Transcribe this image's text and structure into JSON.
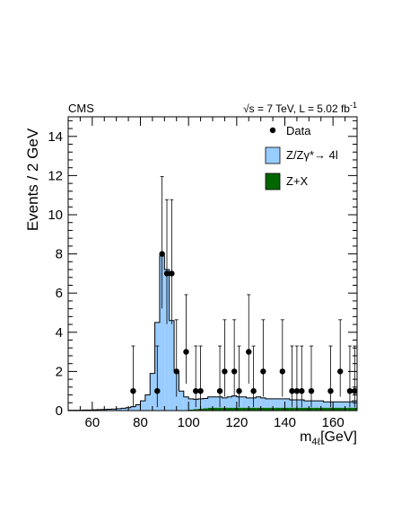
{
  "header": {
    "experiment": "CMS",
    "energy_lumi_prefix": "√s = 7 TeV, L = 5.02 fb",
    "lumi_exponent": "-1"
  },
  "chart_data": {
    "type": "bar",
    "title": "",
    "xlabel_main": "m",
    "xlabel_sub": "4ℓ",
    "xlabel_unit": "[GeV]",
    "ylabel": "Events / 2 GeV",
    "xlim": [
      50,
      170
    ],
    "ylim": [
      0,
      15
    ],
    "x_ticks": [
      60,
      80,
      100,
      120,
      140,
      160
    ],
    "y_ticks": [
      0,
      2,
      4,
      6,
      8,
      10,
      12,
      14
    ],
    "bin_width": 2,
    "legend_position": "top-right",
    "legend": [
      {
        "label": "Data",
        "kind": "marker"
      },
      {
        "label": "Z/Zγ*→ 4l",
        "kind": "fill",
        "color": "#99ccff"
      },
      {
        "label": "Z+X",
        "kind": "fill",
        "color": "#006600"
      }
    ],
    "series": [
      {
        "name": "Z/Zγ*→ 4l",
        "color": "#99ccff",
        "bin_lows": [
          50,
          52,
          54,
          56,
          58,
          60,
          62,
          64,
          66,
          68,
          70,
          72,
          74,
          76,
          78,
          80,
          82,
          84,
          86,
          88,
          90,
          92,
          94,
          96,
          98,
          100,
          102,
          104,
          106,
          108,
          110,
          112,
          114,
          116,
          118,
          120,
          122,
          124,
          126,
          128,
          130,
          132,
          134,
          136,
          138,
          140,
          142,
          144,
          146,
          148,
          150,
          152,
          154,
          156,
          158,
          160,
          162,
          164,
          166,
          168
        ],
        "values": [
          0.02,
          0.02,
          0.02,
          0.03,
          0.03,
          0.04,
          0.05,
          0.06,
          0.07,
          0.08,
          0.1,
          0.12,
          0.15,
          0.2,
          0.3,
          0.5,
          0.8,
          1.9,
          4.5,
          7.9,
          7.2,
          4.6,
          2.0,
          1.0,
          0.7,
          0.55,
          0.5,
          0.5,
          0.5,
          0.55,
          0.55,
          0.55,
          0.5,
          0.55,
          0.6,
          0.55,
          0.55,
          0.5,
          0.5,
          0.55,
          0.5,
          0.45,
          0.45,
          0.45,
          0.45,
          0.45,
          0.4,
          0.4,
          0.4,
          0.35,
          0.35,
          0.35,
          0.35,
          0.3,
          0.3,
          0.3,
          0.3,
          0.3,
          0.3,
          0.35
        ]
      },
      {
        "name": "Z+X",
        "color": "#006600",
        "bin_lows": [
          50,
          52,
          54,
          56,
          58,
          60,
          62,
          64,
          66,
          68,
          70,
          72,
          74,
          76,
          78,
          80,
          82,
          84,
          86,
          88,
          90,
          92,
          94,
          96,
          98,
          100,
          102,
          104,
          106,
          108,
          110,
          112,
          114,
          116,
          118,
          120,
          122,
          124,
          126,
          128,
          130,
          132,
          134,
          136,
          138,
          140,
          142,
          144,
          146,
          148,
          150,
          152,
          154,
          156,
          158,
          160,
          162,
          164,
          166,
          168
        ],
        "values": [
          0,
          0,
          0,
          0,
          0,
          0,
          0,
          0,
          0,
          0,
          0,
          0,
          0,
          0,
          0,
          0,
          0,
          0,
          0,
          0,
          0,
          0,
          0,
          0,
          0,
          0.05,
          0.08,
          0.1,
          0.12,
          0.15,
          0.15,
          0.15,
          0.15,
          0.15,
          0.15,
          0.15,
          0.15,
          0.15,
          0.15,
          0.15,
          0.15,
          0.15,
          0.15,
          0.15,
          0.15,
          0.15,
          0.15,
          0.15,
          0.15,
          0.15,
          0.15,
          0.15,
          0.15,
          0.15,
          0.15,
          0.15,
          0.15,
          0.15,
          0.15,
          0.15
        ]
      }
    ],
    "data_points": [
      {
        "x": 77,
        "y": 1,
        "err_low": 0.83,
        "err_high": 2.3
      },
      {
        "x": 87,
        "y": 1,
        "err_low": 0.83,
        "err_high": 2.3
      },
      {
        "x": 89,
        "y": 8,
        "err_low": 2.79,
        "err_high": 3.95
      },
      {
        "x": 91,
        "y": 7,
        "err_low": 2.58,
        "err_high": 3.77
      },
      {
        "x": 93,
        "y": 7,
        "err_low": 2.58,
        "err_high": 3.77
      },
      {
        "x": 95,
        "y": 2,
        "err_low": 1.29,
        "err_high": 2.64
      },
      {
        "x": 99,
        "y": 3,
        "err_low": 1.63,
        "err_high": 2.92
      },
      {
        "x": 103,
        "y": 1,
        "err_low": 0.83,
        "err_high": 2.3
      },
      {
        "x": 105,
        "y": 1,
        "err_low": 0.83,
        "err_high": 2.3
      },
      {
        "x": 113,
        "y": 1,
        "err_low": 0.83,
        "err_high": 2.3
      },
      {
        "x": 115,
        "y": 2,
        "err_low": 1.29,
        "err_high": 2.64
      },
      {
        "x": 119,
        "y": 2,
        "err_low": 1.29,
        "err_high": 2.64
      },
      {
        "x": 121,
        "y": 1,
        "err_low": 0.83,
        "err_high": 2.3
      },
      {
        "x": 125,
        "y": 3,
        "err_low": 1.63,
        "err_high": 2.92
      },
      {
        "x": 127,
        "y": 1,
        "err_low": 0.83,
        "err_high": 2.3
      },
      {
        "x": 131,
        "y": 2,
        "err_low": 1.29,
        "err_high": 2.64
      },
      {
        "x": 139,
        "y": 2,
        "err_low": 1.29,
        "err_high": 2.64
      },
      {
        "x": 143,
        "y": 1,
        "err_low": 0.83,
        "err_high": 2.3
      },
      {
        "x": 145,
        "y": 1,
        "err_low": 0.83,
        "err_high": 2.3
      },
      {
        "x": 147,
        "y": 1,
        "err_low": 0.83,
        "err_high": 2.3
      },
      {
        "x": 151,
        "y": 1,
        "err_low": 0.83,
        "err_high": 2.3
      },
      {
        "x": 159,
        "y": 1,
        "err_low": 0.83,
        "err_high": 2.3
      },
      {
        "x": 163,
        "y": 2,
        "err_low": 1.29,
        "err_high": 2.64
      },
      {
        "x": 167,
        "y": 1,
        "err_low": 0.83,
        "err_high": 2.3
      },
      {
        "x": 169,
        "y": 1,
        "err_low": 0.83,
        "err_high": 2.3
      }
    ]
  }
}
